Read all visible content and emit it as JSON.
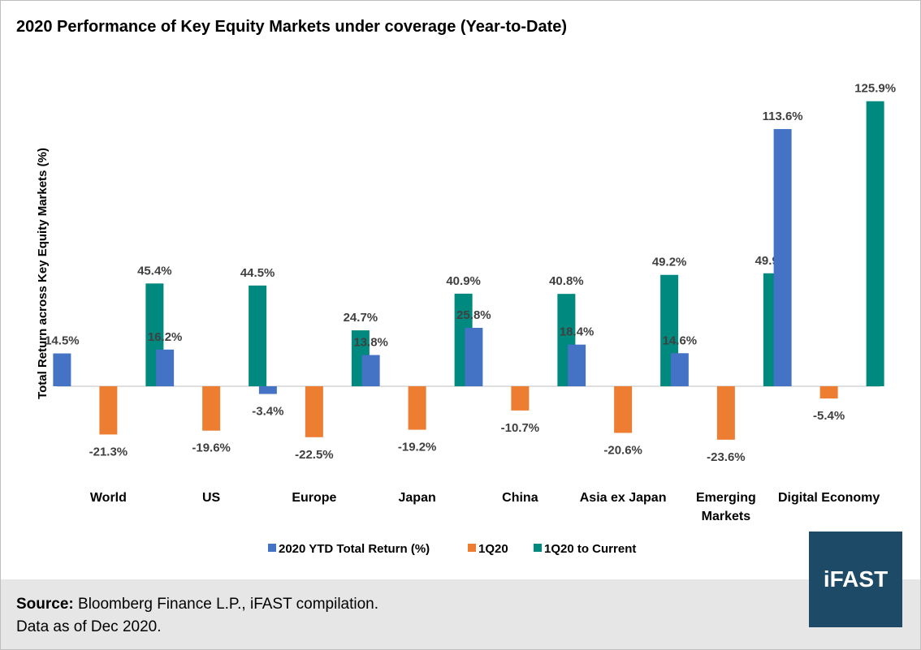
{
  "title": "2020 Performance of Key Equity Markets under coverage (Year-to-Date)",
  "source_label": "Source:",
  "source_text": "Bloomberg Finance L.P., iFAST compilation.",
  "data_note": "Data as of Dec 2020.",
  "logo_text": "iFAST",
  "colors": {
    "series1": "#4472c4",
    "series2": "#ed7d31",
    "series3": "#00897e",
    "footer": "#e6e6e6",
    "logo_bg": "#1d4a66"
  },
  "chart_data": {
    "type": "bar",
    "ylabel": "Total Return across Key Equity Markets (%)",
    "categories": [
      "World",
      "US",
      "Europe",
      "Japan",
      "China",
      "Asia ex Japan",
      "Emerging Markets",
      "Digital Economy"
    ],
    "category_lines": [
      [
        "World"
      ],
      [
        "US"
      ],
      [
        "Europe"
      ],
      [
        "Japan"
      ],
      [
        "China"
      ],
      [
        "Asia ex Japan"
      ],
      [
        "Emerging",
        "Markets"
      ],
      [
        "Digital Economy"
      ]
    ],
    "series": [
      {
        "name": "2020 YTD Total Return (%)",
        "values": [
          14.5,
          16.2,
          -3.4,
          13.8,
          25.8,
          18.4,
          14.6,
          113.6
        ],
        "color": "#4472c4"
      },
      {
        "name": "1Q20",
        "values": [
          -21.3,
          -19.6,
          -22.5,
          -19.2,
          -10.7,
          -20.6,
          -23.6,
          -5.4
        ],
        "color": "#ed7d31"
      },
      {
        "name": "1Q20 to Current",
        "values": [
          45.4,
          44.5,
          24.7,
          40.9,
          40.8,
          49.2,
          49.9,
          125.9
        ],
        "color": "#00897e"
      }
    ],
    "value_suffix": "%",
    "ylim": [
      -30,
      130
    ],
    "grid": false,
    "legend_position": "bottom"
  }
}
